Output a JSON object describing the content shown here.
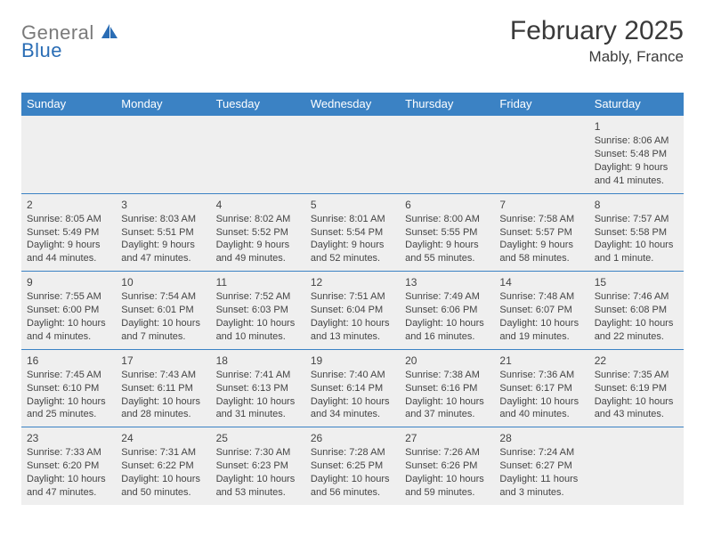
{
  "logo": {
    "text_general": "General",
    "text_blue": "Blue",
    "icon_color": "#2a6db5"
  },
  "header": {
    "month_title": "February 2025",
    "location": "Mably, France"
  },
  "colors": {
    "header_bg": "#3b82c4",
    "header_text": "#ffffff",
    "row_bg": "#efefef",
    "border": "#3b82c4",
    "body_text": "#444444"
  },
  "day_headers": [
    "Sunday",
    "Monday",
    "Tuesday",
    "Wednesday",
    "Thursday",
    "Friday",
    "Saturday"
  ],
  "weeks": [
    [
      null,
      null,
      null,
      null,
      null,
      null,
      {
        "n": "1",
        "sunrise": "8:06 AM",
        "sunset": "5:48 PM",
        "daylight": "9 hours and 41 minutes."
      }
    ],
    [
      {
        "n": "2",
        "sunrise": "8:05 AM",
        "sunset": "5:49 PM",
        "daylight": "9 hours and 44 minutes."
      },
      {
        "n": "3",
        "sunrise": "8:03 AM",
        "sunset": "5:51 PM",
        "daylight": "9 hours and 47 minutes."
      },
      {
        "n": "4",
        "sunrise": "8:02 AM",
        "sunset": "5:52 PM",
        "daylight": "9 hours and 49 minutes."
      },
      {
        "n": "5",
        "sunrise": "8:01 AM",
        "sunset": "5:54 PM",
        "daylight": "9 hours and 52 minutes."
      },
      {
        "n": "6",
        "sunrise": "8:00 AM",
        "sunset": "5:55 PM",
        "daylight": "9 hours and 55 minutes."
      },
      {
        "n": "7",
        "sunrise": "7:58 AM",
        "sunset": "5:57 PM",
        "daylight": "9 hours and 58 minutes."
      },
      {
        "n": "8",
        "sunrise": "7:57 AM",
        "sunset": "5:58 PM",
        "daylight": "10 hours and 1 minute."
      }
    ],
    [
      {
        "n": "9",
        "sunrise": "7:55 AM",
        "sunset": "6:00 PM",
        "daylight": "10 hours and 4 minutes."
      },
      {
        "n": "10",
        "sunrise": "7:54 AM",
        "sunset": "6:01 PM",
        "daylight": "10 hours and 7 minutes."
      },
      {
        "n": "11",
        "sunrise": "7:52 AM",
        "sunset": "6:03 PM",
        "daylight": "10 hours and 10 minutes."
      },
      {
        "n": "12",
        "sunrise": "7:51 AM",
        "sunset": "6:04 PM",
        "daylight": "10 hours and 13 minutes."
      },
      {
        "n": "13",
        "sunrise": "7:49 AM",
        "sunset": "6:06 PM",
        "daylight": "10 hours and 16 minutes."
      },
      {
        "n": "14",
        "sunrise": "7:48 AM",
        "sunset": "6:07 PM",
        "daylight": "10 hours and 19 minutes."
      },
      {
        "n": "15",
        "sunrise": "7:46 AM",
        "sunset": "6:08 PM",
        "daylight": "10 hours and 22 minutes."
      }
    ],
    [
      {
        "n": "16",
        "sunrise": "7:45 AM",
        "sunset": "6:10 PM",
        "daylight": "10 hours and 25 minutes."
      },
      {
        "n": "17",
        "sunrise": "7:43 AM",
        "sunset": "6:11 PM",
        "daylight": "10 hours and 28 minutes."
      },
      {
        "n": "18",
        "sunrise": "7:41 AM",
        "sunset": "6:13 PM",
        "daylight": "10 hours and 31 minutes."
      },
      {
        "n": "19",
        "sunrise": "7:40 AM",
        "sunset": "6:14 PM",
        "daylight": "10 hours and 34 minutes."
      },
      {
        "n": "20",
        "sunrise": "7:38 AM",
        "sunset": "6:16 PM",
        "daylight": "10 hours and 37 minutes."
      },
      {
        "n": "21",
        "sunrise": "7:36 AM",
        "sunset": "6:17 PM",
        "daylight": "10 hours and 40 minutes."
      },
      {
        "n": "22",
        "sunrise": "7:35 AM",
        "sunset": "6:19 PM",
        "daylight": "10 hours and 43 minutes."
      }
    ],
    [
      {
        "n": "23",
        "sunrise": "7:33 AM",
        "sunset": "6:20 PM",
        "daylight": "10 hours and 47 minutes."
      },
      {
        "n": "24",
        "sunrise": "7:31 AM",
        "sunset": "6:22 PM",
        "daylight": "10 hours and 50 minutes."
      },
      {
        "n": "25",
        "sunrise": "7:30 AM",
        "sunset": "6:23 PM",
        "daylight": "10 hours and 53 minutes."
      },
      {
        "n": "26",
        "sunrise": "7:28 AM",
        "sunset": "6:25 PM",
        "daylight": "10 hours and 56 minutes."
      },
      {
        "n": "27",
        "sunrise": "7:26 AM",
        "sunset": "6:26 PM",
        "daylight": "10 hours and 59 minutes."
      },
      {
        "n": "28",
        "sunrise": "7:24 AM",
        "sunset": "6:27 PM",
        "daylight": "11 hours and 3 minutes."
      },
      null
    ]
  ],
  "labels": {
    "sunrise": "Sunrise:",
    "sunset": "Sunset:",
    "daylight": "Daylight:"
  }
}
